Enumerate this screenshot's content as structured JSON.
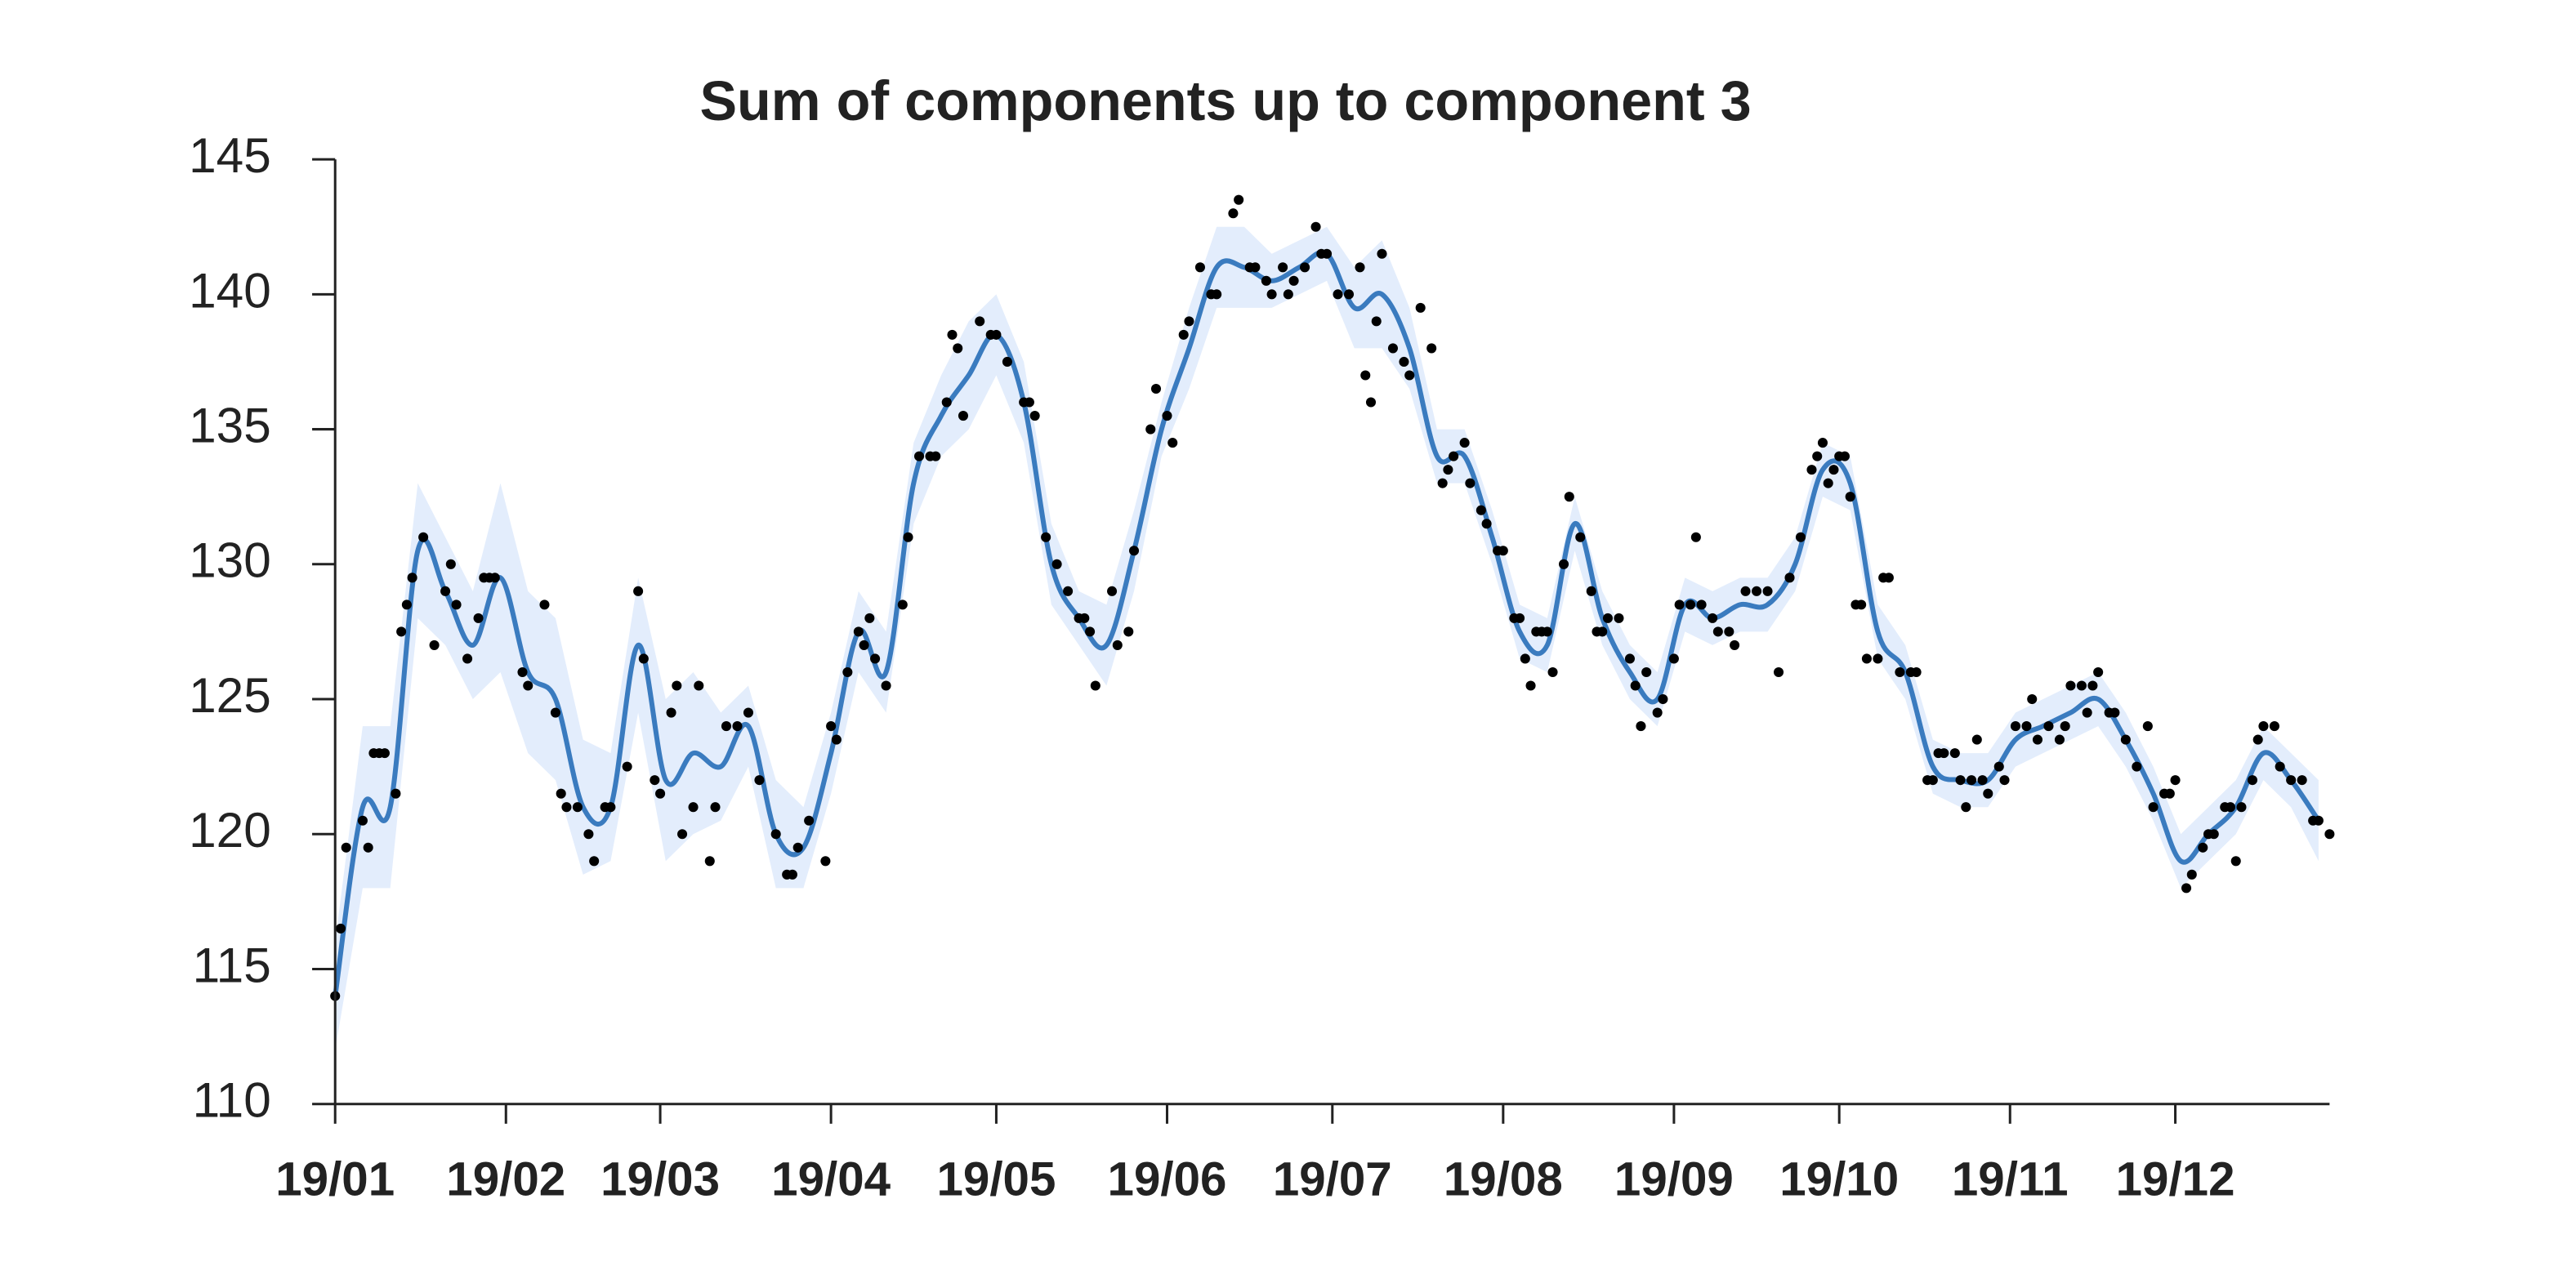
{
  "chart_data": {
    "type": "line",
    "title": "Sum of components up to component 3",
    "xlim": [
      0,
      362
    ],
    "ylim": [
      110,
      145
    ],
    "yticks": [
      110,
      115,
      120,
      125,
      130,
      135,
      140,
      145
    ],
    "xticks": [
      {
        "value": 0,
        "label": "19/01"
      },
      {
        "value": 31,
        "label": "19/02"
      },
      {
        "value": 59,
        "label": "19/03"
      },
      {
        "value": 90,
        "label": "19/04"
      },
      {
        "value": 120,
        "label": "19/05"
      },
      {
        "value": 151,
        "label": "19/06"
      },
      {
        "value": 181,
        "label": "19/07"
      },
      {
        "value": 212,
        "label": "19/08"
      },
      {
        "value": 243,
        "label": "19/09"
      },
      {
        "value": 273,
        "label": "19/10"
      },
      {
        "value": 304,
        "label": "19/11"
      },
      {
        "value": 334,
        "label": "19/12"
      }
    ],
    "line": {
      "color": "#3a7bbf",
      "band_color": "#e3edfc",
      "x": [
        0,
        5,
        10,
        15,
        20,
        25,
        30,
        35,
        40,
        45,
        50,
        55,
        60,
        65,
        70,
        75,
        80,
        85,
        90,
        95,
        100,
        105,
        110,
        115,
        120,
        125,
        130,
        135,
        140,
        145,
        150,
        155,
        160,
        165,
        170,
        175,
        180,
        185,
        190,
        195,
        200,
        205,
        210,
        215,
        220,
        225,
        230,
        235,
        240,
        245,
        250,
        255,
        260,
        265,
        270,
        275,
        280,
        285,
        290,
        295,
        300,
        305,
        310,
        315,
        320,
        325,
        330,
        335,
        340,
        345,
        350,
        355,
        360
      ],
      "values": [
        114,
        121,
        121,
        130.5,
        129,
        127,
        129.5,
        126,
        125,
        121,
        121,
        127,
        122,
        123,
        122.5,
        124,
        120,
        119.5,
        123,
        127.5,
        126,
        133,
        135.5,
        137,
        138.5,
        136,
        130,
        128,
        127,
        130.5,
        135,
        138,
        141,
        141,
        140.5,
        141,
        141.5,
        139.5,
        140,
        138,
        134,
        134,
        131,
        127.5,
        127,
        131.5,
        128,
        126,
        125,
        128.5,
        128,
        128.5,
        128.5,
        130,
        133.5,
        133,
        127.5,
        126,
        122.5,
        122,
        122,
        123.5,
        124,
        124.5,
        125,
        123.5,
        121.5,
        119,
        120,
        121,
        123,
        122,
        120.5
      ],
      "lower": [
        112,
        118,
        118,
        128,
        127,
        125,
        126,
        123,
        122,
        118.5,
        119,
        124.5,
        119,
        120,
        120.5,
        122.5,
        118,
        118,
        121.5,
        126,
        124.5,
        131.5,
        134,
        135,
        137,
        134.5,
        128.5,
        127,
        125.5,
        129,
        134,
        136.5,
        139.5,
        139.5,
        139.5,
        140,
        140.5,
        138,
        138,
        136.5,
        133,
        133,
        130,
        126.5,
        126,
        130.5,
        127,
        125,
        124,
        127.5,
        127,
        127.5,
        127.5,
        129,
        132.5,
        132,
        126.5,
        125,
        121.5,
        121,
        121,
        122.5,
        123,
        123.5,
        124,
        122.5,
        120.5,
        118,
        119,
        120,
        122,
        121,
        119
      ],
      "upper": [
        116,
        124,
        124,
        133,
        131,
        129,
        133,
        129,
        128,
        123.5,
        123,
        129.5,
        125,
        126,
        124.5,
        125.5,
        122,
        121,
        124.5,
        129,
        127.5,
        134.5,
        137,
        139,
        140,
        137.5,
        131.5,
        129,
        128.5,
        132,
        136,
        139.5,
        142.5,
        142.5,
        141.5,
        142,
        142.5,
        141,
        142,
        139.5,
        135,
        135,
        132,
        128.5,
        128,
        132.5,
        129,
        127,
        126,
        129.5,
        129,
        129.5,
        129.5,
        131,
        134.5,
        134,
        128.5,
        127,
        123.5,
        123,
        123,
        124.5,
        125,
        125.5,
        126,
        124.5,
        122.5,
        120,
        121,
        122,
        124,
        123,
        122
      ]
    },
    "points": {
      "color": "#000000",
      "x": [
        0,
        1,
        2,
        5,
        6,
        7,
        8,
        9,
        11,
        12,
        13,
        14,
        16,
        18,
        20,
        21,
        22,
        24,
        26,
        27,
        28,
        29,
        34,
        35,
        38,
        40,
        41,
        42,
        44,
        46,
        47,
        49,
        50,
        53,
        55,
        56,
        58,
        59,
        61,
        62,
        63,
        65,
        66,
        68,
        69,
        71,
        73,
        75,
        77,
        80,
        82,
        83,
        84,
        86,
        89,
        90,
        91,
        93,
        95,
        96,
        97,
        98,
        100,
        103,
        104,
        106,
        108,
        109,
        111,
        112,
        113,
        114,
        117,
        119,
        120,
        122,
        125,
        126,
        127,
        129,
        131,
        133,
        135,
        136,
        137,
        138,
        141,
        142,
        144,
        145,
        148,
        149,
        151,
        152,
        154,
        155,
        157,
        159,
        160,
        163,
        164,
        166,
        167,
        169,
        170,
        172,
        173,
        174,
        176,
        178,
        179,
        180,
        182,
        184,
        186,
        187,
        188,
        189,
        190,
        192,
        194,
        195,
        197,
        199,
        201,
        202,
        203,
        205,
        206,
        208,
        209,
        211,
        212,
        214,
        215,
        216,
        217,
        218,
        219,
        220,
        221,
        223,
        224,
        226,
        228,
        229,
        230,
        231,
        233,
        235,
        236,
        237,
        238,
        240,
        241,
        243,
        244,
        246,
        247,
        248,
        250,
        251,
        253,
        254,
        256,
        258,
        260,
        262,
        264,
        266,
        268,
        269,
        270,
        271,
        272,
        273,
        274,
        275,
        276,
        277,
        278,
        280,
        281,
        282,
        284,
        286,
        287,
        289,
        290,
        291,
        292,
        294,
        295,
        296,
        297,
        298,
        299,
        300,
        302,
        303,
        305,
        307,
        308,
        309,
        311,
        313,
        314,
        315,
        317,
        318,
        319,
        320,
        322,
        323,
        325,
        327,
        329,
        330,
        332,
        333,
        334,
        336,
        337,
        339,
        340,
        341,
        343,
        344,
        345,
        346,
        348,
        349,
        350,
        352,
        353,
        355,
        357,
        359,
        360,
        362
      ],
      "y": [
        114,
        116.5,
        119.5,
        120.5,
        119.5,
        123,
        123,
        123,
        121.5,
        127.5,
        128.5,
        129.5,
        131,
        127,
        129,
        130,
        128.5,
        126.5,
        128,
        129.5,
        129.5,
        129.5,
        126,
        125.5,
        128.5,
        124.5,
        121.5,
        121,
        121,
        120,
        119,
        121,
        121,
        122.5,
        129,
        126.5,
        122,
        121.5,
        124.5,
        125.5,
        120,
        121,
        125.5,
        119,
        121,
        124,
        124,
        124.5,
        122,
        120,
        118.5,
        118.5,
        119.5,
        120.5,
        119,
        124,
        123.5,
        126,
        127.5,
        127,
        128,
        126.5,
        125.5,
        128.5,
        131,
        134,
        134,
        134,
        136,
        138.5,
        138,
        135.5,
        139,
        138.5,
        138.5,
        137.5,
        136,
        136,
        135.5,
        131,
        130,
        129,
        128,
        128,
        127.5,
        125.5,
        129,
        127,
        127.5,
        130.5,
        135,
        136.5,
        135.5,
        134.5,
        138.5,
        139,
        141,
        140,
        140,
        143,
        143.5,
        141,
        141,
        140.5,
        140,
        141,
        140,
        140.5,
        141,
        142.5,
        141.5,
        141.5,
        140,
        140,
        141,
        137,
        136,
        139,
        141.5,
        138,
        137.5,
        137,
        139.5,
        138,
        133,
        133.5,
        134,
        134.5,
        133,
        132,
        131.5,
        130.5,
        130.5,
        128,
        128,
        126.5,
        125.5,
        127.5,
        127.5,
        127.5,
        126,
        130,
        132.5,
        131,
        129,
        127.5,
        127.5,
        128,
        128,
        126.5,
        125.5,
        124,
        126,
        124.5,
        125,
        126.5,
        128.5,
        128.5,
        131,
        128.5,
        128,
        127.5,
        127.5,
        127,
        129,
        129,
        129,
        126,
        129.5,
        131,
        133.5,
        134,
        134.5,
        133,
        133.5,
        134,
        134,
        132.5,
        128.5,
        128.5,
        126.5,
        126.5,
        129.5,
        129.5,
        126,
        126,
        126,
        122,
        122,
        123,
        123,
        123,
        122,
        121,
        122,
        123.5,
        122,
        121.5,
        122.5,
        122,
        124,
        124,
        125,
        123.5,
        124,
        123.5,
        124,
        125.5,
        125.5,
        124.5,
        125.5,
        126,
        124.5,
        124.5,
        123.5,
        122.5,
        124,
        121,
        121.5,
        121.5,
        122,
        118,
        118.5,
        119.5,
        120,
        120,
        121,
        121,
        119,
        121,
        122,
        123.5,
        124,
        124,
        122.5,
        122,
        122,
        120.5,
        120.5,
        120
      ]
    }
  }
}
